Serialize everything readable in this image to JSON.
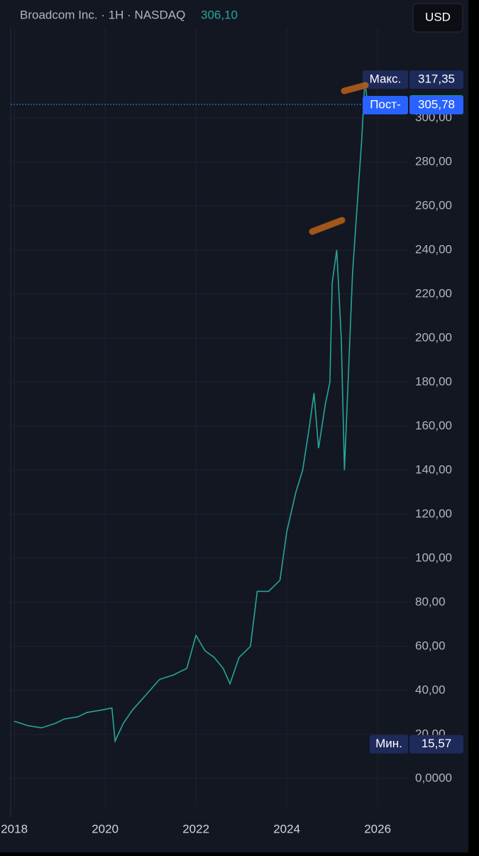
{
  "chart_data": {
    "type": "line",
    "title": "Broadcom Inc. · 1H · NASDAQ",
    "title_price": "306,10",
    "currency": "USD",
    "color": "#26a69a",
    "grid": true,
    "x": [
      2018.0,
      2018.3,
      2018.6,
      2018.9,
      2019.1,
      2019.4,
      2019.6,
      2019.9,
      2020.15,
      2020.22,
      2020.4,
      2020.6,
      2020.9,
      2021.2,
      2021.5,
      2021.8,
      2022.0,
      2022.2,
      2022.4,
      2022.6,
      2022.75,
      2022.95,
      2023.2,
      2023.35,
      2023.6,
      2023.85,
      2024.0,
      2024.2,
      2024.35,
      2024.5,
      2024.6,
      2024.7,
      2024.85,
      2024.95,
      2025.0,
      2025.1,
      2025.2,
      2025.27,
      2025.35,
      2025.45,
      2025.55,
      2025.65,
      2025.72,
      2025.78
    ],
    "values": [
      26,
      24,
      23,
      25,
      27,
      28,
      30,
      31,
      32,
      17,
      25,
      31,
      38,
      45,
      47,
      50,
      65,
      58,
      55,
      50,
      43,
      55,
      60,
      85,
      85,
      90,
      112,
      130,
      140,
      160,
      175,
      150,
      170,
      180,
      225,
      240,
      200,
      140,
      180,
      230,
      260,
      290,
      317,
      306.1
    ],
    "xlim": [
      2017.92,
      2026.67
    ],
    "xticks": [
      {
        "value": 2018,
        "label": "2018"
      },
      2020,
      2022,
      2024,
      2026
    ],
    "ylim": [
      -12.6,
      340.6
    ],
    "yticks": [
      {
        "value": 0,
        "label": "0,0000"
      },
      {
        "value": 20,
        "label": "20,00"
      },
      {
        "value": 40,
        "label": "40,00"
      },
      {
        "value": 60,
        "label": "60,00"
      },
      {
        "value": 80,
        "label": "80,00"
      },
      {
        "value": 100,
        "label": "100,00"
      },
      {
        "value": 120,
        "label": "120,00"
      },
      {
        "value": 140,
        "label": "140,00"
      },
      {
        "value": 160,
        "label": "160,00"
      },
      {
        "value": 180,
        "label": "180,00"
      },
      {
        "value": 200,
        "label": "200,00"
      },
      {
        "value": 220,
        "label": "220,00"
      },
      {
        "value": 240,
        "label": "240,00"
      },
      {
        "value": 260,
        "label": "260,00"
      },
      {
        "value": 280,
        "label": "280,00"
      },
      {
        "value": 300,
        "label": "300,00"
      }
    ],
    "markers": [
      {
        "name": "Макс.",
        "value": 317.35,
        "label": "317,35",
        "color": "#1e2a5a"
      },
      {
        "name": "",
        "value": 306.1,
        "label": "306,10",
        "color": "#089981"
      },
      {
        "name": "Пост-",
        "value": 305.78,
        "label": "305,78",
        "color": "#2962ff"
      },
      {
        "name": "Мин.",
        "value": 15.57,
        "label": "15,57",
        "color": "#1e2a5a"
      }
    ]
  }
}
